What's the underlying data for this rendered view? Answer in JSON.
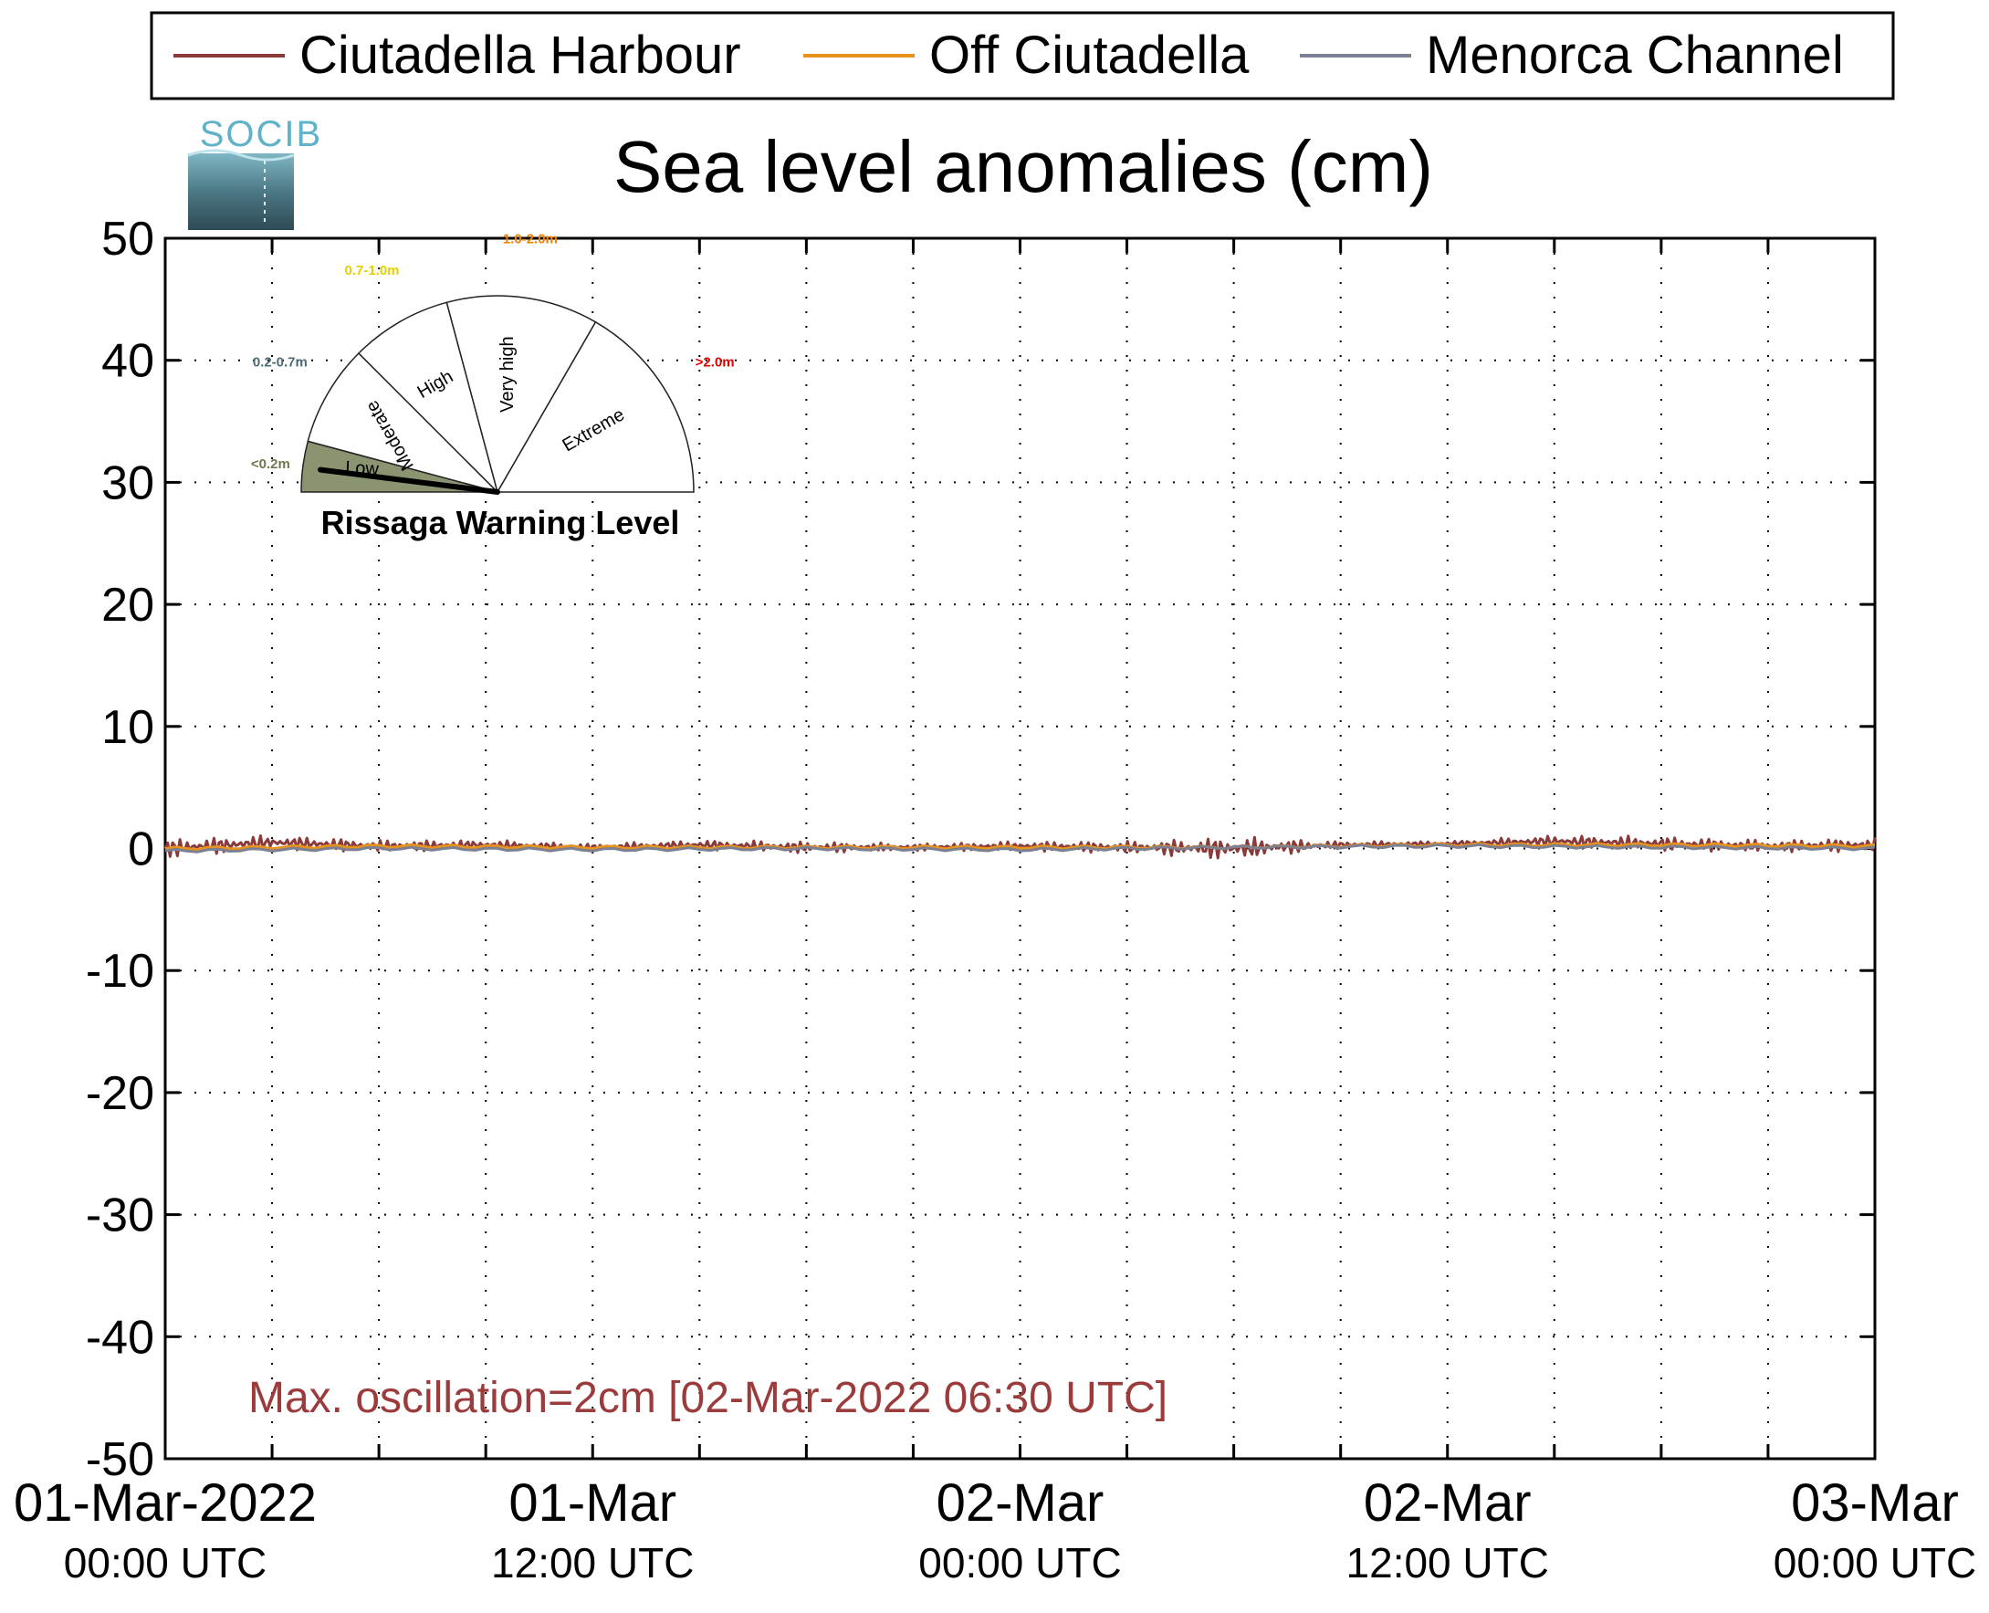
{
  "chart_data": {
    "type": "line",
    "title": "Sea level anomalies (cm)",
    "xlabel": "",
    "ylabel": "",
    "ylim": [
      -50,
      50
    ],
    "yticks": [
      50,
      40,
      30,
      20,
      10,
      0,
      -10,
      -20,
      -30,
      -40,
      -50
    ],
    "xlim": [
      "2022-03-01 00:00",
      "2022-03-03 00:00"
    ],
    "xtick_labels": [
      {
        "date": "01-Mar-2022",
        "time": "00:00 UTC"
      },
      {
        "date": "01-Mar",
        "time": "12:00 UTC"
      },
      {
        "date": "02-Mar",
        "time": "00:00 UTC"
      },
      {
        "date": "02-Mar",
        "time": "12:00 UTC"
      },
      {
        "date": "03-Mar",
        "time": "00:00 UTC"
      }
    ],
    "grid": true,
    "legend_position": "top",
    "series": [
      {
        "name": "Ciutadella Harbour",
        "color": "#8b3a3a",
        "x": [
          "2022-03-01 00:00",
          "2022-03-01 03:00",
          "2022-03-01 06:00",
          "2022-03-01 09:00",
          "2022-03-01 12:00",
          "2022-03-01 15:00",
          "2022-03-01 18:00",
          "2022-03-01 21:00",
          "2022-03-02 00:00",
          "2022-03-02 03:00",
          "2022-03-02 06:00",
          "2022-03-02 09:00",
          "2022-03-02 12:00",
          "2022-03-02 15:00",
          "2022-03-02 18:00",
          "2022-03-02 21:00",
          "2022-03-03 00:00"
        ],
        "y": [
          0,
          0.5,
          0.2,
          0.3,
          0.1,
          0.3,
          0.1,
          0.1,
          0.2,
          0.1,
          0.0,
          0.3,
          0.4,
          0.6,
          0.4,
          0.2,
          0.3
        ],
        "oscillation_cm": [
          0.8,
          0.6,
          0.5,
          0.4,
          0.3,
          0.4,
          0.5,
          0.3,
          0.4,
          0.5,
          1.0,
          0.3,
          0.2,
          0.5,
          0.6,
          0.5,
          0.6
        ]
      },
      {
        "name": "Off Ciutadella",
        "color": "#e8921e",
        "x": [
          "2022-03-01 00:00",
          "2022-03-01 06:00",
          "2022-03-01 12:00",
          "2022-03-01 18:00",
          "2022-03-02 00:00",
          "2022-03-02 06:00",
          "2022-03-02 12:00",
          "2022-03-02 18:00",
          "2022-03-03 00:00"
        ],
        "y": [
          0,
          0.2,
          0.1,
          0.1,
          0.1,
          0.1,
          0.3,
          0.3,
          0.2
        ]
      },
      {
        "name": "Menorca Channel",
        "color": "#7b8193",
        "x": [
          "2022-03-01 00:00",
          "2022-03-01 06:00",
          "2022-03-01 12:00",
          "2022-03-01 18:00",
          "2022-03-02 00:00",
          "2022-03-02 06:00",
          "2022-03-02 12:00",
          "2022-03-02 18:00",
          "2022-03-03 00:00"
        ],
        "y": [
          -0.2,
          0.0,
          -0.1,
          0.0,
          -0.1,
          0.1,
          0.2,
          0.1,
          0.0
        ]
      }
    ],
    "annotation": "Max. oscillation=2cm [02-Mar-2022 06:30 UTC]",
    "annotation_color": "#9b3b3b"
  },
  "logo": {
    "text": "SOCIB"
  },
  "gauge": {
    "title": "Rissaga Warning Level",
    "current_level": "Low",
    "sectors": [
      {
        "label": "Low",
        "range": "<0.2m",
        "range_color": "#6b7a4e",
        "fill": "#8a9470"
      },
      {
        "label": "Moderate",
        "range": "0.2-0.7m",
        "range_color": "#4d6b73",
        "fill": "#ffffff"
      },
      {
        "label": "High",
        "range": "0.7-1.0m",
        "range_color": "#e5d100",
        "fill": "#ffffff"
      },
      {
        "label": "Very high",
        "range": "1.0-2.0m",
        "range_color": "#f08000",
        "fill": "#ffffff"
      },
      {
        "label": "Extreme",
        "range": ">2.0m",
        "range_color": "#e00000",
        "fill": "#ffffff"
      }
    ]
  }
}
